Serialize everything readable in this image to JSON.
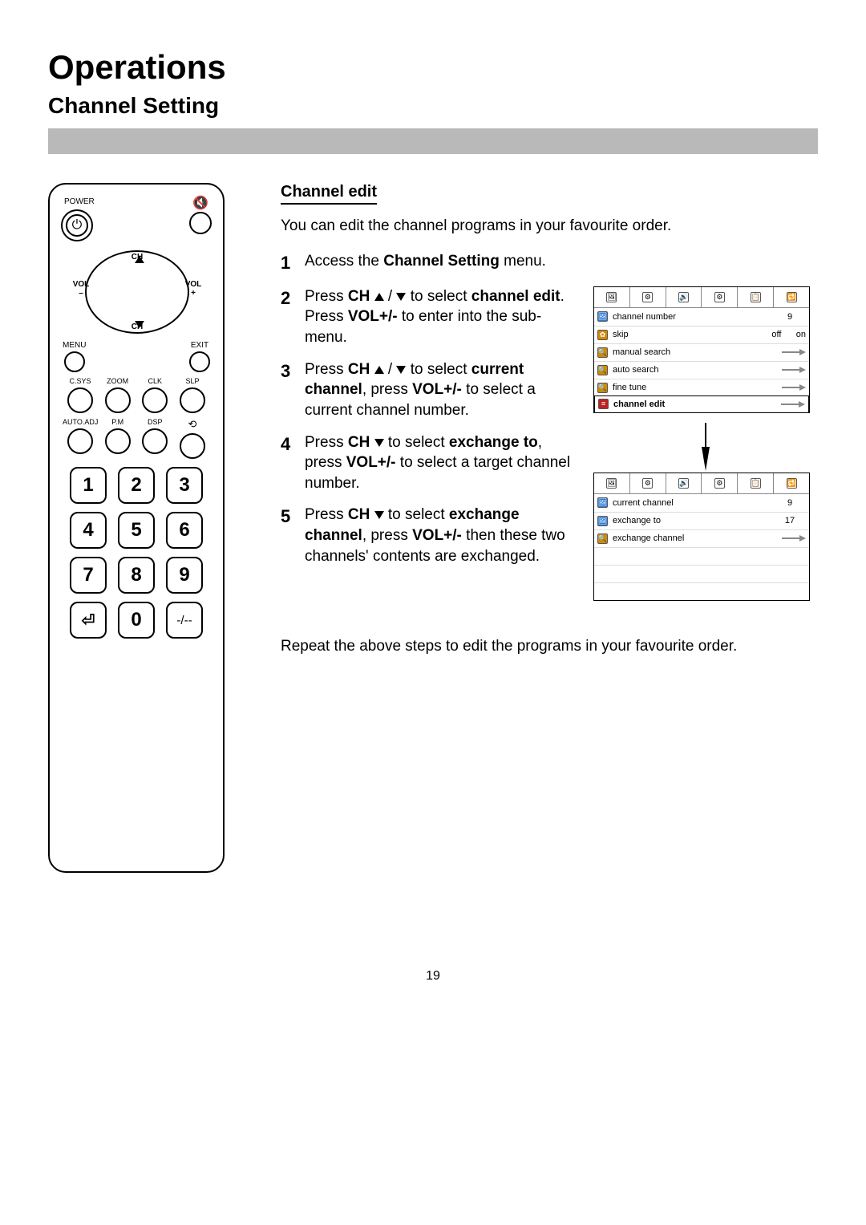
{
  "title": "Operations",
  "subtitle": "Channel Setting",
  "section_heading": "Channel edit",
  "intro": "You can edit the channel programs in your favourite order.",
  "steps": [
    {
      "n": "1",
      "pre": "Access the ",
      "b1": "Channel Setting",
      "post": " menu."
    },
    {
      "n": "2",
      "text_parts": [
        "Press ",
        "CH",
        " to select ",
        "channel edit",
        ". Press ",
        "VOL+/-",
        " to enter into the sub-menu."
      ],
      "arrows": "updown"
    },
    {
      "n": "3",
      "text_parts": [
        "Press ",
        "CH",
        " to select ",
        "current channel",
        ", press ",
        "VOL+/-",
        " to select a current channel number."
      ],
      "arrows": "updown"
    },
    {
      "n": "4",
      "text_parts": [
        "Press ",
        "CH",
        " to select ",
        "exchange to",
        ", press ",
        "VOL+/-",
        " to select a target channel number."
      ],
      "arrows": "down"
    },
    {
      "n": "5",
      "text_parts": [
        "Press ",
        "CH",
        " to select ",
        "exchange channel",
        ", press ",
        "VOL+/-",
        " then these two channels' contents are exchanged."
      ],
      "arrows": "down"
    }
  ],
  "outro": "Repeat the above steps to edit the programs in your favourite order.",
  "page_number": "19",
  "remote": {
    "power_label": "POWER",
    "dpad": {
      "up": "CH",
      "down": "CH",
      "vol_minus": "VOL\n–",
      "vol_plus": "VOL\n+"
    },
    "menu": "MENU",
    "exit": "EXIT",
    "row1": [
      "C.SYS",
      "ZOOM",
      "CLK",
      "SLP"
    ],
    "row2": [
      "AUTO.ADJ",
      "P.M",
      "DSP",
      ""
    ],
    "numpad": [
      [
        "1",
        "2",
        "3"
      ],
      [
        "4",
        "5",
        "6"
      ],
      [
        "7",
        "8",
        "9"
      ],
      [
        "⏎",
        "0",
        "-/--"
      ]
    ]
  },
  "osd1": {
    "tabs": [
      "🖼",
      "⚙",
      "🔊",
      "⚙",
      "📋",
      "🔁"
    ],
    "rows": [
      {
        "icon": "🖼",
        "label": "channel number",
        "val": "9",
        "type": "val",
        "color": "#2a7bd6"
      },
      {
        "icon": "✿",
        "label": "skip",
        "val": "off      on",
        "type": "choice",
        "color": "#d18a00"
      },
      {
        "icon": "🔍",
        "label": "manual search",
        "type": "arrow",
        "color": "#d18a00"
      },
      {
        "icon": "🔍",
        "label": "auto search",
        "type": "arrow",
        "color": "#d18a00"
      },
      {
        "icon": "🔍",
        "label": "fine tune",
        "type": "arrow",
        "color": "#d18a00"
      },
      {
        "icon": "≡",
        "label": "channel edit",
        "type": "arrow",
        "sel": true,
        "color": "#c02020"
      }
    ]
  },
  "osd2": {
    "tabs": [
      "🖼",
      "⚙",
      "🔊",
      "⚙",
      "📋",
      "🔁"
    ],
    "rows": [
      {
        "icon": "🖼",
        "label": "current channel",
        "val": "9",
        "type": "val",
        "color": "#2a7bd6"
      },
      {
        "icon": "🖼",
        "label": "exchange to",
        "val": "17",
        "type": "val",
        "color": "#2a7bd6"
      },
      {
        "icon": "🔍",
        "label": "exchange channel",
        "type": "arrow",
        "color": "#d18a00"
      }
    ],
    "blank_rows": 3
  },
  "colors": {
    "gray_bar": "#b9b9b9"
  }
}
